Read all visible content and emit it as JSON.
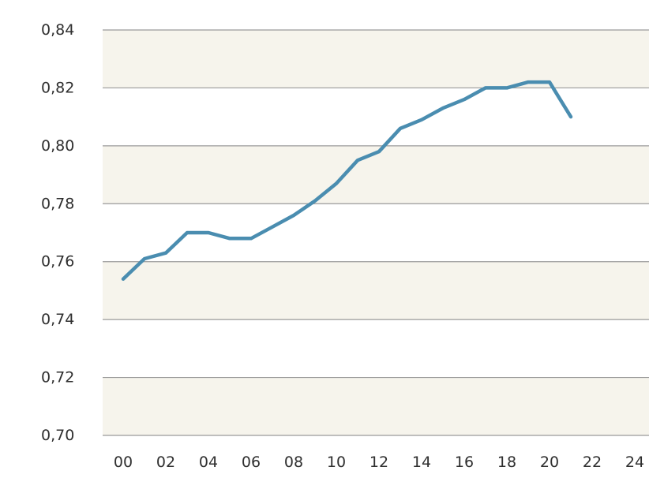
{
  "chart_data": {
    "type": "line",
    "title": "",
    "xlabel": "",
    "ylabel": "",
    "x": [
      0,
      1,
      2,
      3,
      4,
      5,
      6,
      7,
      8,
      9,
      10,
      11,
      12,
      13,
      14,
      15,
      16,
      17,
      18,
      19,
      20,
      21
    ],
    "series": [
      {
        "values": [
          0.754,
          0.761,
          0.763,
          0.77,
          0.77,
          0.768,
          0.768,
          0.772,
          0.776,
          0.781,
          0.787,
          0.795,
          0.798,
          0.806,
          0.809,
          0.813,
          0.816,
          0.82,
          0.82,
          0.822,
          0.822,
          0.81
        ],
        "color": "#4a8db0"
      }
    ],
    "xlim": [
      0,
      24
    ],
    "ylim": [
      0.7,
      0.84
    ],
    "x_ticks": [
      0,
      2,
      4,
      6,
      8,
      10,
      12,
      14,
      16,
      18,
      20,
      22,
      24
    ],
    "x_tick_labels": [
      "00",
      "02",
      "04",
      "06",
      "08",
      "10",
      "12",
      "14",
      "16",
      "18",
      "20",
      "22",
      "24"
    ],
    "y_ticks": [
      0.7,
      0.72,
      0.74,
      0.76,
      0.78,
      0.8,
      0.82,
      0.84
    ],
    "y_tick_labels": [
      "0,70",
      "0,72",
      "0,74",
      "0,76",
      "0,78",
      "0,80",
      "0,82",
      "0,84"
    ],
    "grid": true,
    "band_color": "#f6f4ec",
    "grid_color": "#9a9a9a",
    "legend": "none"
  }
}
